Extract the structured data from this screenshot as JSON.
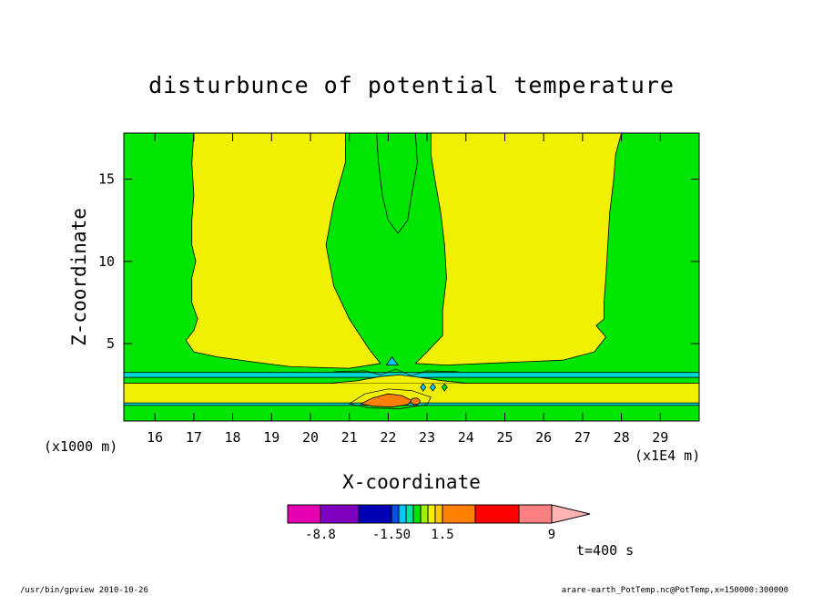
{
  "chart_data": {
    "type": "heatmap",
    "title": "disturbunce of potential temperature",
    "xlabel": "X-coordinate",
    "ylabel": "Z-coordinate",
    "x_unit_label": "(x1E4 m)",
    "y_unit_label": "(x1000 m)",
    "xlim": [
      15.2,
      30.0
    ],
    "ylim": [
      0.3,
      17.8
    ],
    "x_ticks": [
      16,
      17,
      18,
      19,
      20,
      21,
      22,
      23,
      24,
      25,
      26,
      27,
      28,
      29
    ],
    "y_ticks": [
      5,
      10,
      15
    ],
    "fields": [
      {
        "name": "background",
        "level": "0 to 1.5",
        "color": "#00e600"
      },
      {
        "name": "left-plume",
        "level": "1.5 to 3",
        "color": "#f0f000",
        "outline": [
          [
            17.0,
            17.8
          ],
          [
            18.0,
            17.8
          ],
          [
            19.0,
            17.8
          ],
          [
            20.0,
            17.8
          ],
          [
            20.9,
            17.8
          ],
          [
            20.9,
            16.0
          ],
          [
            20.6,
            13.5
          ],
          [
            20.4,
            11.0
          ],
          [
            20.6,
            8.5
          ],
          [
            21.0,
            6.5
          ],
          [
            21.5,
            4.7
          ],
          [
            21.8,
            3.8
          ],
          [
            21.0,
            3.5
          ],
          [
            19.5,
            3.6
          ],
          [
            18.5,
            3.9
          ],
          [
            17.6,
            4.2
          ],
          [
            17.0,
            4.5
          ],
          [
            16.8,
            5.2
          ],
          [
            17.0,
            5.8
          ],
          [
            17.1,
            6.5
          ],
          [
            16.95,
            7.5
          ],
          [
            16.95,
            9.0
          ],
          [
            17.05,
            10.0
          ],
          [
            16.95,
            11.0
          ],
          [
            16.95,
            12.5
          ],
          [
            17.0,
            14.0
          ],
          [
            16.95,
            16.0
          ]
        ]
      },
      {
        "name": "right-plume",
        "level": "1.5 to 3",
        "color": "#f0f000",
        "outline": [
          [
            23.1,
            17.8
          ],
          [
            24.0,
            17.8
          ],
          [
            25.0,
            17.8
          ],
          [
            26.0,
            17.8
          ],
          [
            27.0,
            17.8
          ],
          [
            28.0,
            17.8
          ],
          [
            27.85,
            16.5
          ],
          [
            27.8,
            15.0
          ],
          [
            27.7,
            13.0
          ],
          [
            27.65,
            11.0
          ],
          [
            27.6,
            9.0
          ],
          [
            27.55,
            7.5
          ],
          [
            27.55,
            6.5
          ],
          [
            27.35,
            6.1
          ],
          [
            27.6,
            5.4
          ],
          [
            27.3,
            4.5
          ],
          [
            26.5,
            4.0
          ],
          [
            25.5,
            3.9
          ],
          [
            24.5,
            3.8
          ],
          [
            23.5,
            3.7
          ],
          [
            22.7,
            3.8
          ],
          [
            23.0,
            4.5
          ],
          [
            23.4,
            5.5
          ],
          [
            23.4,
            7.0
          ],
          [
            23.5,
            9.0
          ],
          [
            23.45,
            11.0
          ],
          [
            23.35,
            13.0
          ],
          [
            23.2,
            15.0
          ],
          [
            23.1,
            16.5
          ]
        ]
      },
      {
        "name": "top-intrusion",
        "level": "0 to 1.5",
        "color": "#00e600",
        "outline": [
          [
            21.7,
            17.8
          ],
          [
            22.7,
            17.8
          ],
          [
            22.75,
            16.0
          ],
          [
            22.6,
            14.0
          ],
          [
            22.5,
            12.5
          ],
          [
            22.25,
            11.7
          ],
          [
            22.0,
            12.5
          ],
          [
            21.85,
            14.0
          ],
          [
            21.75,
            16.0
          ]
        ]
      },
      {
        "name": "lower-band",
        "level": "1.5 to 3",
        "color": "#f0f000",
        "z_range": [
          1.3,
          2.6
        ]
      },
      {
        "name": "thin-layer-upper",
        "level": "-1.5 to 0",
        "color": "#00d8d8",
        "z_range": [
          2.95,
          3.25
        ]
      },
      {
        "name": "thin-layer-lower",
        "level": "-1.5 to 0",
        "color": "#00d8d8",
        "z_range": [
          1.25,
          1.4
        ]
      },
      {
        "name": "core-orange",
        "level": "3 to 4.5",
        "color": "#ff8000",
        "center": [
          22.1,
          1.35
        ]
      }
    ],
    "colorbar": {
      "colors": [
        "#e600b4",
        "#8000c0",
        "#0000b4",
        "#0050e6",
        "#00c8ff",
        "#00e6a0",
        "#00e600",
        "#a0f000",
        "#f0f000",
        "#ffc800",
        "#ff8000",
        "#ff0000",
        "#ff8080",
        "#ffb4b4"
      ],
      "tick_labels": [
        "-8.8",
        "-1.50",
        "1.5",
        "9"
      ]
    },
    "time_label": "t=400 s"
  },
  "footer": {
    "left": "/usr/bin/gpview   2010-10-26",
    "right": "arare-earth_PotTemp.nc@PotTemp,x=150000:300000"
  }
}
